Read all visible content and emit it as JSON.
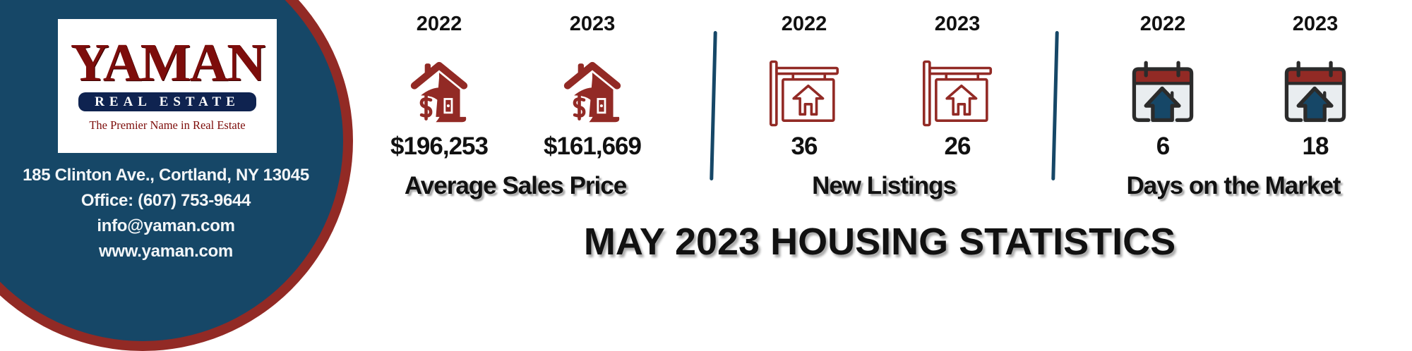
{
  "logo": {
    "name": "YAMAN",
    "subtitle": "REAL ESTATE",
    "tagline": "The Premier Name in Real Estate"
  },
  "contact": {
    "address": "185 Clinton Ave., Cortland, NY 13045",
    "office": "Office: (607) 753-9644",
    "email": "info@yaman.com",
    "website": "www.yaman.com"
  },
  "stats": [
    {
      "label": "Average Sales Price",
      "icon": "house-dollar-icon",
      "values": [
        {
          "year": "2022",
          "value": "$196,253"
        },
        {
          "year": "2023",
          "value": "$161,669"
        }
      ]
    },
    {
      "label": "New Listings",
      "icon": "for-sale-sign-icon",
      "values": [
        {
          "year": "2022",
          "value": "36"
        },
        {
          "year": "2023",
          "value": "26"
        }
      ]
    },
    {
      "label": "Days on the Market",
      "icon": "calendar-house-icon",
      "values": [
        {
          "year": "2022",
          "value": "6"
        },
        {
          "year": "2023",
          "value": "18"
        }
      ]
    }
  ],
  "title": "MAY 2023 HOUSING STATISTICS",
  "colors": {
    "navy": "#164767",
    "red": "#922a25",
    "dark": "#111111"
  }
}
